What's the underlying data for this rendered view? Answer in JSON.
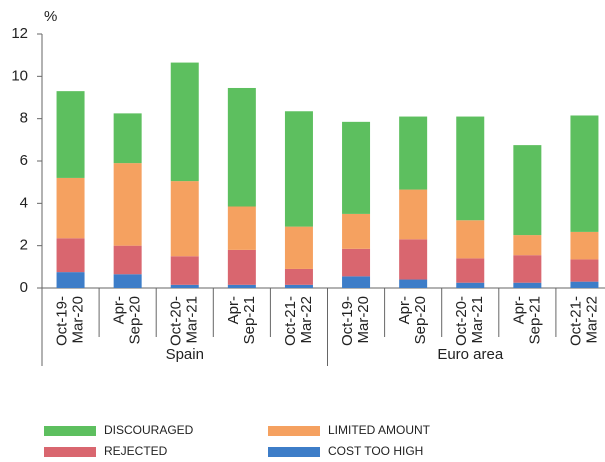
{
  "chart_data": {
    "type": "stacked-bar",
    "y_label": "%",
    "groups": [
      {
        "label": "Spain",
        "categories": [
          [
            "Oct-19-",
            "Mar-20"
          ],
          [
            "Apr-",
            "Sep-20"
          ],
          [
            "Oct-20-",
            "Mar-21"
          ],
          [
            "Apr-",
            "Sep-21"
          ],
          [
            "Oct-21-",
            "Mar-22"
          ]
        ]
      },
      {
        "label": "Euro area",
        "categories": [
          [
            "Oct-19-",
            "Mar-20"
          ],
          [
            "Apr-",
            "Sep-20"
          ],
          [
            "Oct-20-",
            "Mar-21"
          ],
          [
            "Apr-",
            "Sep-21"
          ],
          [
            "Oct-21-",
            "Mar-22"
          ]
        ]
      }
    ],
    "series": [
      {
        "name": "COST TOO HIGH",
        "color": "#3d7dc8",
        "values": [
          0.75,
          0.65,
          0.15,
          0.15,
          0.15,
          0.55,
          0.4,
          0.25,
          0.25,
          0.3
        ]
      },
      {
        "name": "REJECTED",
        "color": "#d9666f",
        "values": [
          1.6,
          1.35,
          1.35,
          1.65,
          0.75,
          1.3,
          1.9,
          1.15,
          1.3,
          1.05
        ]
      },
      {
        "name": "LIMITED AMOUNT",
        "color": "#f5a160",
        "values": [
          2.85,
          3.9,
          3.55,
          2.05,
          2.0,
          1.65,
          2.35,
          1.8,
          0.95,
          1.3
        ]
      },
      {
        "name": "DISCOURAGED",
        "color": "#5dbf5f",
        "values": [
          4.1,
          2.35,
          5.6,
          5.6,
          5.45,
          4.35,
          3.45,
          4.9,
          4.25,
          5.5
        ]
      }
    ],
    "ylim": [
      0,
      12
    ],
    "yticks": [
      0,
      2,
      4,
      6,
      8,
      10,
      12
    ],
    "grid": false
  }
}
